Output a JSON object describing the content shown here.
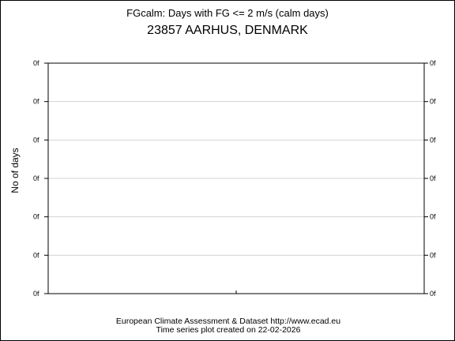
{
  "chart_data": {
    "type": "line",
    "title": "FGcalm: Days with FG <= 2 m/s (calm days)",
    "subtitle": "23857 AARHUS, DENMARK",
    "xlabel": "",
    "ylabel": "No of days",
    "y_tick_labels": [
      "0f",
      "0f",
      "0f",
      "0f",
      "0f",
      "0f",
      "0f"
    ],
    "x_tick_labels": [],
    "series": [],
    "grid": true,
    "legend": "none",
    "colors": {
      "frame": "#000000",
      "grid": "#d3d3d3",
      "background": "#ffffff"
    }
  },
  "footer": {
    "line1": "European Climate Assessment & Dataset  http://www.ecad.eu",
    "line2": "Time series plot created on 22-02-2026"
  }
}
